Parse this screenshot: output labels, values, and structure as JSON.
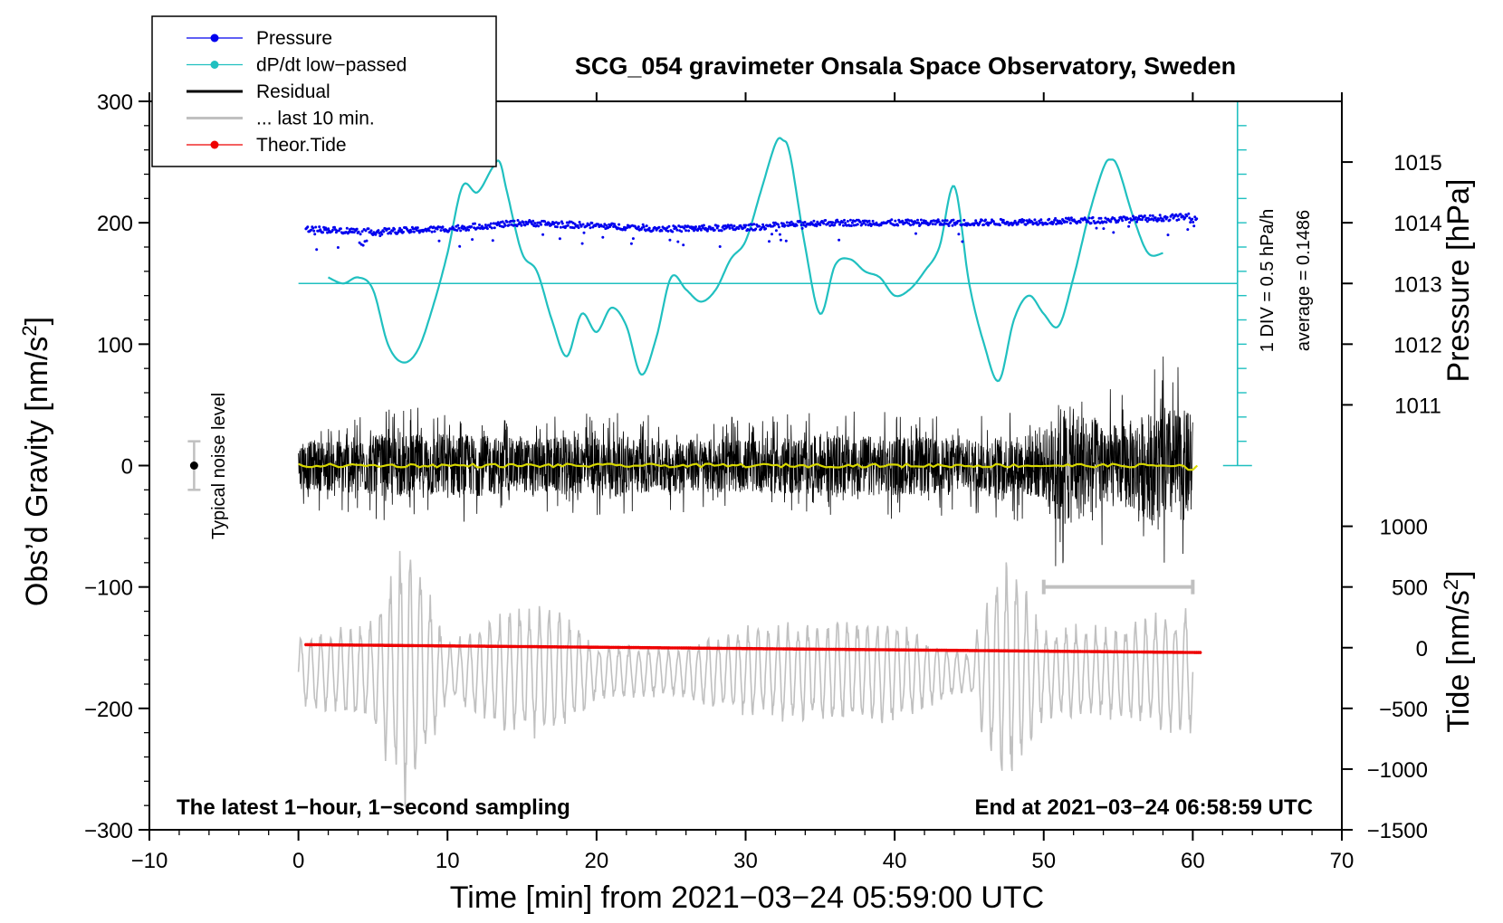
{
  "colors": {
    "pressure": "#0000ee",
    "dpdt": "#20c0c0",
    "residual": "#000000",
    "last10": "#c0c0c0",
    "tide": "#ee0000",
    "smooth": "#d8d800",
    "axis": "#000000"
  },
  "chart_data": {
    "type": "line",
    "title": "SCG_054 gravimeter Onsala Space Observatory, Sweden",
    "xlabel": "Time [min] from 2021−03−24 05:59:00 UTC",
    "ylabel_left": "Obs’d Gravity [nm/s",
    "ylabel_left_sup": "2",
    "ylabel_left_end": "]",
    "ylabel_right_pressure": "Pressure [hPa]",
    "ylabel_right_tide": "Tide [nm/s",
    "ylabel_right_tide_sup": "2",
    "ylabel_right_tide_end": "]",
    "xlim": [
      -10,
      70
    ],
    "ylim": [
      -300,
      300
    ],
    "x_ticks": [
      "−10",
      "0",
      "10",
      "20",
      "30",
      "40",
      "50",
      "60",
      "70"
    ],
    "x_tick_values": [
      -10,
      0,
      10,
      20,
      30,
      40,
      50,
      60,
      70
    ],
    "y_ticks": [
      "300",
      "200",
      "100",
      "0",
      "−100",
      "−200",
      "−300"
    ],
    "y_tick_values": [
      300,
      200,
      100,
      0,
      -100,
      -200,
      -300
    ],
    "pressure_axis": {
      "ticks": [
        "1015",
        "1014",
        "1013",
        "1012",
        "1011"
      ],
      "values": [
        1015,
        1014,
        1013,
        1012,
        1011
      ],
      "gravity_at_1014": 200,
      "gravity_per_hPa": 50
    },
    "tide_axis": {
      "ticks": [
        "1000",
        "500",
        "0",
        "−500",
        "−1000",
        "−1500"
      ],
      "values": [
        1000,
        500,
        0,
        -500,
        -1000,
        -1500
      ],
      "gravity_at_zero": -150,
      "gravity_per_unit": 0.1
    },
    "legend": [
      {
        "label": "Pressure",
        "style": "line-dot",
        "color_key": "pressure"
      },
      {
        "label": "dP/dt low−passed",
        "style": "line-dot",
        "color_key": "dpdt"
      },
      {
        "label": "Residual",
        "style": "line",
        "color_key": "residual"
      },
      {
        "label": "... last 10 min.",
        "style": "line",
        "color_key": "last10"
      },
      {
        "label": "Theor.Tide",
        "style": "line-dot",
        "color_key": "tide"
      }
    ],
    "series": [
      {
        "name": "Pressure",
        "units": "hPa",
        "x": [
          0.5,
          5,
          10,
          15,
          20,
          25,
          30,
          35,
          40,
          45,
          50,
          55,
          60
        ],
        "values": [
          1013.9,
          1013.85,
          1013.9,
          1014.0,
          1013.95,
          1013.9,
          1013.92,
          1014.0,
          1014.0,
          1014.0,
          1014.02,
          1014.05,
          1014.1
        ]
      },
      {
        "name": "dP/dt low−passed",
        "units": "gravity-plot units",
        "x": [
          2,
          3,
          4,
          5,
          6,
          7,
          8,
          9,
          10,
          11,
          12,
          13,
          13.5,
          14,
          15,
          16,
          17,
          18,
          19,
          20,
          21,
          22,
          23,
          24,
          25,
          26,
          27,
          28,
          29,
          30,
          31,
          32,
          32.5,
          33,
          34,
          35,
          36,
          37,
          38,
          39,
          40,
          41,
          42,
          43,
          44,
          45,
          46,
          47,
          48,
          49,
          50,
          51,
          52,
          53,
          54,
          54.5,
          55,
          56,
          57,
          58
        ],
        "values": [
          155,
          150,
          155,
          145,
          100,
          85,
          95,
          130,
          175,
          230,
          225,
          245,
          250,
          225,
          175,
          160,
          120,
          90,
          125,
          110,
          130,
          115,
          75,
          105,
          155,
          145,
          135,
          145,
          170,
          185,
          225,
          265,
          268,
          255,
          180,
          125,
          165,
          170,
          160,
          155,
          140,
          145,
          160,
          180,
          230,
          150,
          100,
          70,
          120,
          140,
          125,
          115,
          155,
          205,
          245,
          252,
          245,
          205,
          175,
          175
        ]
      },
      {
        "name": "Residual",
        "amplitude_envelope": {
          "x": [
            0,
            5,
            10,
            15,
            20,
            25,
            30,
            35,
            40,
            45,
            50,
            51,
            55,
            58,
            60
          ],
          "values": [
            35,
            45,
            50,
            40,
            45,
            40,
            40,
            45,
            45,
            40,
            50,
            95,
            60,
            90,
            80
          ]
        }
      },
      {
        "name": "... last 10 min.",
        "offset": -170,
        "amplitude_envelope": {
          "x": [
            0,
            3,
            5,
            7,
            8,
            9,
            10,
            13,
            15,
            18,
            20,
            25,
            30,
            35,
            40,
            45,
            47,
            48,
            50,
            55,
            60
          ],
          "values": [
            30,
            40,
            45,
            115,
            100,
            60,
            25,
            45,
            60,
            50,
            25,
            20,
            40,
            45,
            45,
            15,
            100,
            90,
            40,
            40,
            60
          ]
        }
      },
      {
        "name": "Theor.Tide",
        "units": "nm/s2",
        "x": [
          0.5,
          60.5
        ],
        "values": [
          25,
          -40
        ]
      }
    ],
    "noise_level": {
      "x": -7,
      "y": 0,
      "half_range": 20,
      "label": "Typical noise level"
    },
    "scale_bar": {
      "x": 63,
      "y0": 0,
      "y1": 300,
      "label1": "1 DIV = 0.5 hPa/h",
      "label2": "average = 0.1486",
      "baseline_y": 150
    },
    "last10_marker": {
      "x0": 50,
      "x1": 60,
      "y": -100
    },
    "annotations": {
      "bottom_left": "The latest 1−hour, 1−second sampling",
      "bottom_right": "End at 2021−03−24 06:58:59 UTC"
    },
    "grid": false,
    "legend_position": "top-left"
  }
}
